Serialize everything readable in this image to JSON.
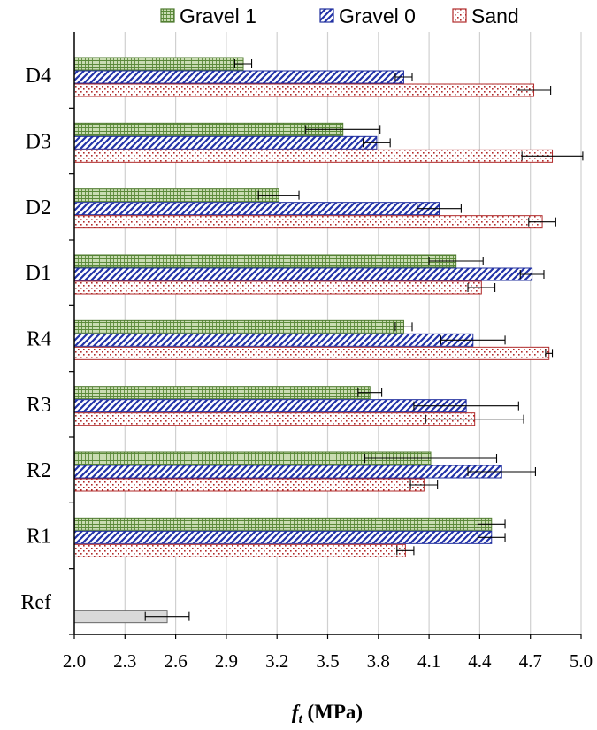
{
  "chart_data": {
    "type": "bar",
    "orientation": "horizontal",
    "categories": [
      "D4",
      "D3",
      "D2",
      "D1",
      "R4",
      "R3",
      "R2",
      "R1",
      "Ref"
    ],
    "series": [
      {
        "name": "Gravel 1",
        "values": [
          3.0,
          3.59,
          3.21,
          4.26,
          3.95,
          3.75,
          4.11,
          4.47,
          null
        ],
        "errors": [
          0.05,
          0.22,
          0.12,
          0.16,
          0.05,
          0.07,
          0.39,
          0.08,
          null
        ],
        "color": "#4e7a2e",
        "fill": "#c9dcb2",
        "pattern": "grid"
      },
      {
        "name": "Gravel 0",
        "values": [
          3.95,
          3.79,
          4.16,
          4.71,
          4.36,
          4.32,
          4.53,
          4.47,
          null
        ],
        "errors": [
          0.05,
          0.08,
          0.13,
          0.07,
          0.19,
          0.31,
          0.2,
          0.08,
          null
        ],
        "color": "#1f2e9e",
        "fill": "#ffffff",
        "pattern": "diagonal"
      },
      {
        "name": "Sand",
        "values": [
          4.72,
          4.83,
          4.77,
          4.41,
          4.81,
          4.37,
          4.07,
          3.96,
          null
        ],
        "errors": [
          0.1,
          0.18,
          0.08,
          0.08,
          0.02,
          0.29,
          0.08,
          0.05,
          null
        ],
        "color": "#b02a2a",
        "fill": "#ffffff",
        "pattern": "dots"
      },
      {
        "name": "",
        "values": [
          null,
          null,
          null,
          null,
          null,
          null,
          null,
          null,
          2.55
        ],
        "errors": [
          null,
          null,
          null,
          null,
          null,
          null,
          null,
          null,
          0.13
        ],
        "color": "#666666",
        "fill": "#d9d9d9",
        "pattern": "solid"
      }
    ],
    "xlim": [
      2.0,
      5.0
    ],
    "xticks": [
      "2.0",
      "2.3",
      "2.6",
      "2.9",
      "3.2",
      "3.5",
      "3.8",
      "4.1",
      "4.4",
      "4.7",
      "5.0"
    ],
    "xlabel_main": "f",
    "xlabel_sub": "t",
    "xlabel_unit": " (MPa)",
    "grid": "vertical",
    "legend": "top"
  }
}
